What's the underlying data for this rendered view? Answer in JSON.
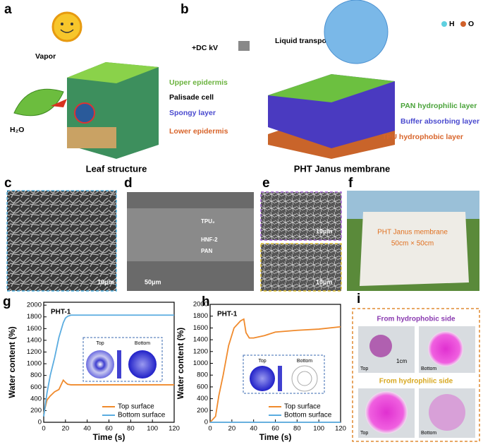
{
  "panels": {
    "a": {
      "letter": "a",
      "vapor": "Vapor",
      "water": "H₂O",
      "upper": "Upper epidermis",
      "palisade": "Palisade cell",
      "spongy": "Spongy layer",
      "lower": "Lower epidermis",
      "caption": "Leaf structure"
    },
    "b": {
      "letter": "b",
      "voltage": "+DC kV",
      "transport": "Liquid transport",
      "h": "H",
      "o": "O",
      "pan": "PAN hydrophilic layer",
      "buffer": "Buffer absorbing layer",
      "tpu": "TPU hydrophobic layer",
      "caption": "PHT Janus membrane"
    },
    "c": {
      "letter": "c",
      "scale": "10μm"
    },
    "d": {
      "letter": "d",
      "tpu": "TPU₂",
      "hnf": "HNF-2",
      "pan": "PAN",
      "scale": "50μm"
    },
    "e": {
      "letter": "e",
      "scale_top": "10μm",
      "scale_bottom": "10μm"
    },
    "f": {
      "letter": "f",
      "name": "PHT Janus membrane",
      "size": "50cm × 50cm"
    },
    "g": {
      "letter": "g",
      "inset_top": "Top",
      "inset_bottom": "Bottom"
    },
    "h": {
      "letter": "h",
      "inset_top": "Top",
      "inset_bottom": "Bottom"
    },
    "i": {
      "letter": "i",
      "hydrophobic": "From hydrophobic side",
      "scale": "1cm",
      "top1": "Top",
      "bottom1": "Bottom",
      "hydrophilic": "From hydrophilic side",
      "top2": "Top",
      "bottom2": "Bottom"
    }
  },
  "chart_data": [
    {
      "type": "line",
      "title": "PHT-1",
      "x_label": "Time (s)",
      "y_label": "Water content (%)",
      "x": [
        0,
        3,
        6,
        10,
        14,
        18,
        20,
        22,
        25,
        30,
        40,
        60,
        80,
        100,
        120
      ],
      "series": [
        {
          "name": "Top surface",
          "color": "#f08a2c",
          "values": [
            150,
            380,
            450,
            520,
            560,
            720,
            680,
            650,
            640,
            640,
            640,
            640,
            640,
            640,
            640
          ]
        },
        {
          "name": "Bottom surface",
          "color": "#5aace0",
          "values": [
            100,
            500,
            800,
            1100,
            1450,
            1700,
            1780,
            1810,
            1830,
            1830,
            1830,
            1830,
            1830,
            1830,
            1830
          ]
        }
      ],
      "xlim": [
        0,
        120
      ],
      "xticks": [
        0,
        20,
        40,
        60,
        80,
        100,
        120
      ],
      "ylim": [
        0,
        2050
      ],
      "yticks": [
        0,
        200,
        400,
        600,
        800,
        1000,
        1200,
        1400,
        1600,
        1800,
        2000
      ]
    },
    {
      "type": "line",
      "title": "PHT-1",
      "x_label": "Time (s)",
      "y_label": "Water content (%)",
      "x": [
        0,
        5,
        8,
        12,
        17,
        22,
        28,
        31,
        33,
        36,
        40,
        50,
        60,
        80,
        100,
        120
      ],
      "series": [
        {
          "name": "Top surface",
          "color": "#f08a2c",
          "values": [
            0,
            100,
            450,
            800,
            1300,
            1600,
            1720,
            1750,
            1520,
            1430,
            1430,
            1470,
            1530,
            1560,
            1580,
            1620
          ]
        },
        {
          "name": "Bottom surface",
          "color": "#5aace0",
          "values": [
            0,
            0,
            0,
            0,
            0,
            0,
            0,
            0,
            0,
            0,
            0,
            0,
            0,
            0,
            0,
            0
          ]
        }
      ],
      "xlim": [
        0,
        120
      ],
      "xticks": [
        0,
        20,
        40,
        60,
        80,
        100,
        120
      ],
      "ylim": [
        0,
        2000
      ],
      "yticks": [
        0,
        200,
        400,
        600,
        800,
        1000,
        1200,
        1400,
        1600,
        1800,
        2000
      ]
    }
  ]
}
